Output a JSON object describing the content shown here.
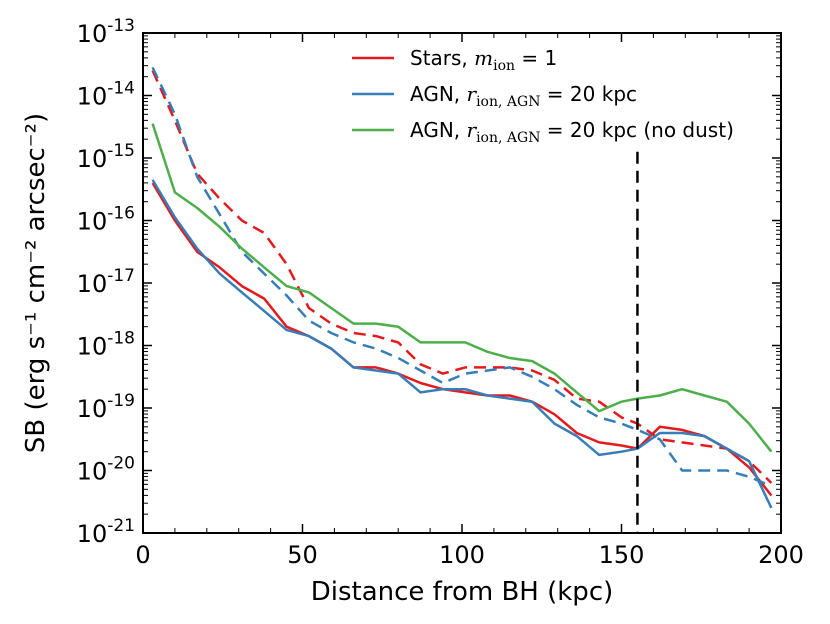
{
  "chart_data": {
    "type": "line",
    "title": "",
    "xlabel": "Distance from BH (kpc)",
    "ylabel": "SB (erg s⁻¹ cm⁻² arcsec⁻²)",
    "xlim": [
      0,
      200
    ],
    "ylim_log10": [
      -21,
      -13
    ],
    "y_scale": "log",
    "x_ticks": [
      0,
      50,
      100,
      150,
      200
    ],
    "y_ticks": [
      {
        "base": "10",
        "exp": "-13"
      },
      {
        "base": "10",
        "exp": "-14"
      },
      {
        "base": "10",
        "exp": "-15"
      },
      {
        "base": "10",
        "exp": "-16"
      },
      {
        "base": "10",
        "exp": "-17"
      },
      {
        "base": "10",
        "exp": "-18"
      },
      {
        "base": "10",
        "exp": "-19"
      },
      {
        "base": "10",
        "exp": "-20"
      },
      {
        "base": "10",
        "exp": "-21"
      }
    ],
    "vline": {
      "x": 155,
      "style": "dashed",
      "color": "#000000",
      "y_top_log10": -14.9
    },
    "legend_position": "top-right",
    "series": [
      {
        "name": "Stars, m_ion = 1",
        "label_prefix": "Stars, ",
        "label_math": "m",
        "label_sub": "ion",
        "label_suffix": " = 1",
        "color": "#e41a1c",
        "style": "solid",
        "x": [
          3,
          10,
          17,
          24,
          31,
          38,
          45,
          52,
          59,
          66,
          73,
          80,
          87,
          94,
          101,
          108,
          115,
          122,
          129,
          136,
          143,
          150,
          155,
          162,
          169,
          176,
          183,
          190,
          197
        ],
        "log10_y": [
          -15.4,
          -16.0,
          -16.5,
          -16.75,
          -17.05,
          -17.25,
          -17.7,
          -17.85,
          -18.05,
          -18.35,
          -18.35,
          -18.45,
          -18.6,
          -18.7,
          -18.75,
          -18.8,
          -18.8,
          -18.9,
          -19.1,
          -19.4,
          -19.55,
          -19.6,
          -19.65,
          -19.3,
          -19.35,
          -19.45,
          -19.65,
          -19.95,
          -20.4
        ]
      },
      {
        "name": "Stars, m_ion = 1 (dashed)",
        "color": "#e41a1c",
        "style": "dashed",
        "x": [
          3,
          10,
          17,
          24,
          31,
          38,
          45,
          52,
          59,
          66,
          73,
          80,
          87,
          94,
          101,
          108,
          115,
          122,
          129,
          136,
          143,
          150,
          155,
          162,
          169,
          176,
          183,
          190,
          197
        ],
        "log10_y": [
          -13.6,
          -14.4,
          -15.25,
          -15.65,
          -16.0,
          -16.2,
          -16.7,
          -17.4,
          -17.65,
          -17.8,
          -17.85,
          -17.95,
          -18.3,
          -18.45,
          -18.35,
          -18.35,
          -18.35,
          -18.4,
          -18.55,
          -18.85,
          -18.9,
          -19.15,
          -19.25,
          -19.5,
          -19.55,
          -19.6,
          -19.65,
          -19.85,
          -20.2
        ]
      },
      {
        "name": "AGN, r_ion,AGN = 20 kpc",
        "label_prefix": "AGN, ",
        "label_math": "r",
        "label_sub": "ion, AGN",
        "label_suffix": " = 20 kpc",
        "color": "#377eb8",
        "style": "solid",
        "x": [
          3,
          10,
          17,
          24,
          31,
          38,
          45,
          52,
          59,
          66,
          73,
          80,
          87,
          94,
          101,
          108,
          115,
          122,
          129,
          136,
          143,
          150,
          155,
          162,
          169,
          176,
          183,
          190,
          197
        ],
        "log10_y": [
          -15.35,
          -15.95,
          -16.45,
          -16.85,
          -17.15,
          -17.45,
          -17.75,
          -17.85,
          -18.05,
          -18.35,
          -18.4,
          -18.45,
          -18.75,
          -18.7,
          -18.7,
          -18.8,
          -18.85,
          -18.9,
          -19.25,
          -19.45,
          -19.75,
          -19.7,
          -19.65,
          -19.4,
          -19.4,
          -19.45,
          -19.65,
          -19.85,
          -20.6
        ]
      },
      {
        "name": "AGN, r_ion,AGN = 20 kpc (dashed)",
        "color": "#377eb8",
        "style": "dashed",
        "x": [
          3,
          10,
          17,
          24,
          31,
          38,
          45,
          52,
          59,
          66,
          73,
          80,
          87,
          94,
          101,
          108,
          115,
          122,
          129,
          136,
          143,
          150,
          155,
          162,
          169,
          176,
          183,
          190,
          197
        ],
        "log10_y": [
          -13.55,
          -14.3,
          -15.3,
          -15.9,
          -16.5,
          -16.85,
          -17.2,
          -17.6,
          -17.8,
          -17.95,
          -18.05,
          -18.2,
          -18.4,
          -18.6,
          -18.45,
          -18.4,
          -18.35,
          -18.5,
          -18.7,
          -18.95,
          -19.15,
          -19.25,
          -19.35,
          -19.5,
          -20.0,
          -20.0,
          -20.0,
          -20.1,
          -20.25
        ]
      },
      {
        "name": "AGN, r_ion,AGN = 20 kpc (no dust)",
        "label_prefix": "AGN, ",
        "label_math": "r",
        "label_sub": "ion, AGN",
        "label_suffix": " = 20 kpc (no dust)",
        "color": "#4daf4a",
        "style": "solid",
        "x": [
          3,
          10,
          17,
          24,
          31,
          38,
          45,
          52,
          59,
          66,
          73,
          80,
          87,
          94,
          101,
          108,
          115,
          122,
          129,
          136,
          143,
          150,
          155,
          162,
          169,
          176,
          183,
          190,
          197
        ],
        "log10_y": [
          -14.45,
          -15.55,
          -15.8,
          -16.1,
          -16.45,
          -16.75,
          -17.05,
          -17.15,
          -17.4,
          -17.65,
          -17.65,
          -17.7,
          -17.95,
          -17.95,
          -17.95,
          -18.1,
          -18.2,
          -18.25,
          -18.45,
          -18.75,
          -19.05,
          -18.9,
          -18.85,
          -18.8,
          -18.7,
          -18.8,
          -18.9,
          -19.25,
          -19.7
        ]
      }
    ]
  }
}
